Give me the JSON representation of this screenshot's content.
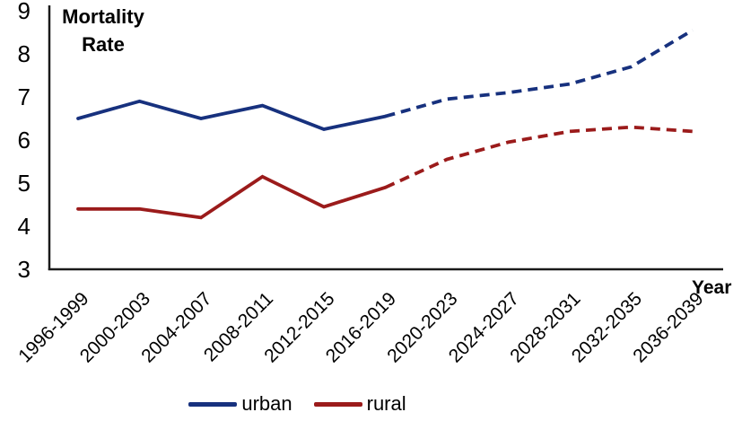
{
  "chart_title": {
    "line1": "Mortality",
    "line2": "Rate"
  },
  "x_axis_title": "Year",
  "legend": {
    "items": [
      {
        "label": "urban",
        "color": "#17317e"
      },
      {
        "label": "rural",
        "color": "#9b1b1b"
      }
    ]
  },
  "chart_data": {
    "type": "line",
    "title": "Mortality Rate",
    "xlabel": "Year",
    "ylabel": "Mortality Rate",
    "categories": [
      "1996-1999",
      "2000-2003",
      "2004-2007",
      "2008-2011",
      "2012-2015",
      "2016-2019",
      "2020-2023",
      "2024-2027",
      "2028-2031",
      "2032-2035",
      "2036-2039"
    ],
    "series": [
      {
        "name": "urban",
        "color": "#17317e",
        "values": [
          6.5,
          6.9,
          6.5,
          6.8,
          6.25,
          6.55,
          6.95,
          7.1,
          7.3,
          7.7,
          8.55
        ]
      },
      {
        "name": "rural",
        "color": "#9b1b1b",
        "values": [
          4.4,
          4.4,
          4.2,
          5.15,
          4.45,
          4.9,
          5.55,
          5.95,
          6.2,
          6.3,
          6.2
        ]
      }
    ],
    "dashed_from_index": 5,
    "ylim": [
      3,
      9
    ],
    "yticks": [
      3,
      4,
      5,
      6,
      7,
      8,
      9
    ],
    "grid": false,
    "legend_position": "bottom"
  }
}
